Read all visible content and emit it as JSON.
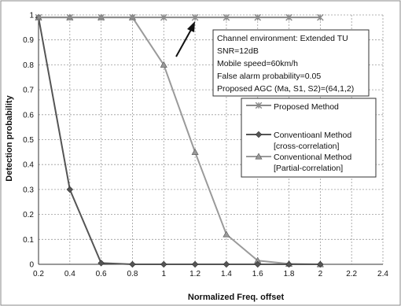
{
  "chart_data": {
    "type": "line",
    "xlabel": "Normalized Freq. offset",
    "ylabel": "Detection probability",
    "xlim": [
      0.2,
      2.4
    ],
    "ylim": [
      0,
      1
    ],
    "xticks": [
      "0.2",
      "0.4",
      "0.6",
      "0.8",
      "1",
      "1.2",
      "1.4",
      "1.6",
      "1.8",
      "2",
      "2.2",
      "2.4"
    ],
    "yticks": [
      "0",
      "0.1",
      "0.2",
      "0.3",
      "0.4",
      "0.5",
      "0.6",
      "0.7",
      "0.8",
      "0.9",
      "1"
    ],
    "grid": true,
    "legend_position": "right",
    "annotation": {
      "lines": [
        "Channel environment: Extended TU",
        "SNR=12dB",
        "Mobile speed=60km/h",
        "False alarm probability=0.05",
        "Proposed AGC (Ma, S1, S2)=(64,1,2)"
      ]
    },
    "series": [
      {
        "name": "Proposed Method",
        "marker": "star",
        "color": "#8a8a8a",
        "x": [
          0.2,
          0.4,
          0.6,
          0.8,
          1,
          1.2,
          1.4,
          1.6,
          1.8,
          2
        ],
        "y": [
          0.99,
          0.99,
          0.99,
          0.99,
          0.99,
          0.99,
          0.99,
          0.99,
          0.99,
          0.99
        ]
      },
      {
        "name": "Conventioanl Method [cross-correlation]",
        "legend_lines": [
          "Conventioanl Method",
          "[cross-correlation]"
        ],
        "marker": "diamond",
        "color": "#555555",
        "x": [
          0.2,
          0.4,
          0.6,
          0.8,
          1,
          1.2,
          1.4,
          1.6,
          1.8,
          2
        ],
        "y": [
          0.99,
          0.3,
          0.005,
          0,
          0,
          0,
          0,
          0,
          0,
          0
        ]
      },
      {
        "name": "Conventional Method [Partial-correlation]",
        "legend_lines": [
          "Conventional Method",
          "[Partial-correlation]"
        ],
        "marker": "triangle",
        "color": "#9a9a9a",
        "x": [
          0.2,
          0.4,
          0.6,
          0.8,
          1,
          1.2,
          1.4,
          1.6,
          1.8,
          2
        ],
        "y": [
          0.99,
          0.99,
          0.99,
          0.99,
          0.8,
          0.45,
          0.12,
          0.015,
          0.002,
          0
        ]
      }
    ]
  }
}
